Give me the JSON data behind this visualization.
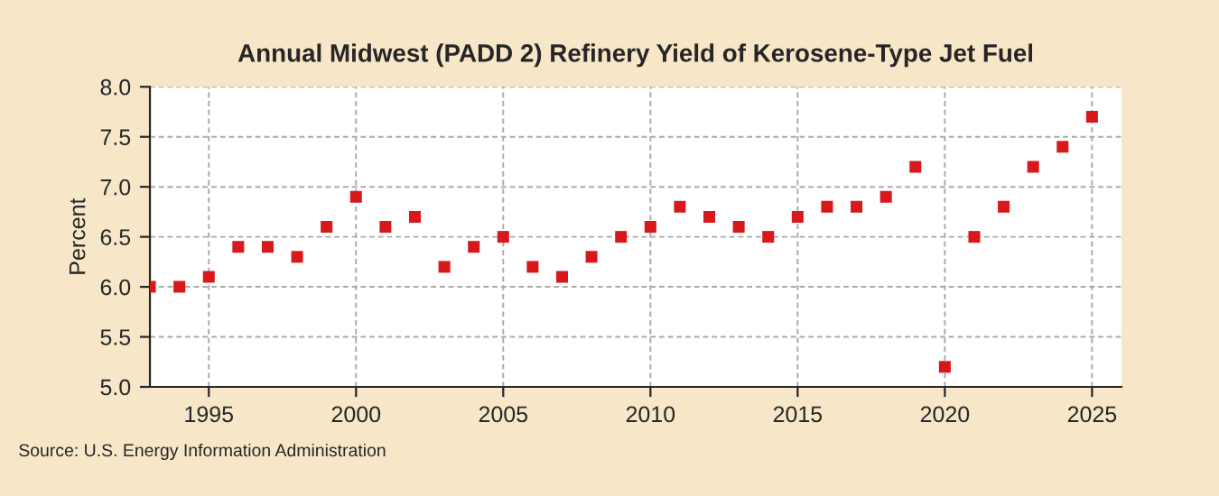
{
  "chart_data": {
    "type": "scatter",
    "title": "Annual Midwest (PADD 2) Refinery Yield of Kerosene-Type Jet Fuel",
    "ylabel": "Percent",
    "x": [
      1993,
      1994,
      1995,
      1996,
      1997,
      1998,
      1999,
      2000,
      2001,
      2002,
      2003,
      2004,
      2005,
      2006,
      2007,
      2008,
      2009,
      2010,
      2011,
      2012,
      2013,
      2014,
      2015,
      2016,
      2017,
      2018,
      2019,
      2020,
      2021,
      2022,
      2023,
      2024,
      2025
    ],
    "series": [
      {
        "color": "#d7191c",
        "values": [
          6.0,
          6.0,
          6.1,
          6.4,
          6.4,
          6.3,
          6.6,
          6.9,
          6.6,
          6.7,
          6.2,
          6.4,
          6.5,
          6.2,
          6.1,
          6.3,
          6.5,
          6.6,
          6.8,
          6.7,
          6.6,
          6.5,
          6.7,
          6.8,
          6.8,
          6.9,
          7.2,
          5.2,
          6.5,
          6.8,
          7.2,
          7.4,
          7.7
        ]
      }
    ],
    "xlim": [
      1993,
      2026
    ],
    "xticks": [
      1995,
      2000,
      2005,
      2010,
      2015,
      2020,
      2025
    ],
    "ylim": [
      5.0,
      8.0
    ],
    "yticks": [
      {
        "value": 5.0,
        "label": "5.0"
      },
      {
        "value": 5.5,
        "label": "5.5"
      },
      {
        "value": 6.0,
        "label": "6.0"
      },
      {
        "value": 6.5,
        "label": "6.5"
      },
      {
        "value": 7.0,
        "label": "7.0"
      },
      {
        "value": 7.5,
        "label": "7.5"
      },
      {
        "value": 8.0,
        "label": "8.0"
      }
    ],
    "grid": true,
    "marker": "square",
    "annotations": [
      "Source: U.S. Energy Information Administration"
    ]
  }
}
